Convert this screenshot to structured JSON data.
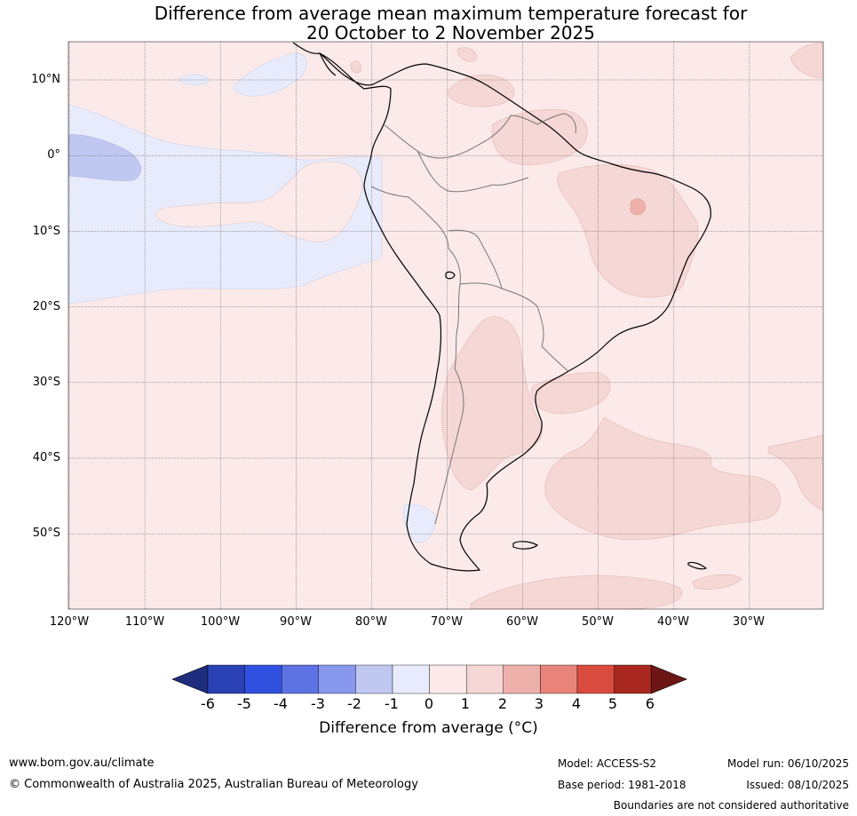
{
  "title": {
    "line1": "Difference from average mean maximum temperature forecast for",
    "line2": "20 October to 2 November 2025"
  },
  "map": {
    "region": "South America",
    "lat_labels": [
      "10°N",
      "0°",
      "10°S",
      "20°S",
      "30°S",
      "40°S",
      "50°S"
    ],
    "lon_labels": [
      "120°W",
      "110°W",
      "100°W",
      "90°W",
      "80°W",
      "70°W",
      "60°W",
      "50°W",
      "40°W",
      "30°W"
    ],
    "colors": {
      "ocean_base": "#fbeae9",
      "warm_1_2": "#f5d7d5",
      "warm_2_3": "#eeb0aa",
      "cool_0_neg1": "#e7ebfb",
      "cool_neg1_neg2": "#c0c8f2"
    }
  },
  "colorbar": {
    "ticks": [
      "-6",
      "-5",
      "-4",
      "-3",
      "-2",
      "-1",
      "0",
      "1",
      "2",
      "3",
      "4",
      "5",
      "6"
    ],
    "colors": [
      "#1f2d7f",
      "#2a40b5",
      "#3050e0",
      "#5d72e3",
      "#8898ed",
      "#c0c8f2",
      "#e7ebfb",
      "#fbeae9",
      "#f5d7d5",
      "#eeb0aa",
      "#e8847a",
      "#d94a3f",
      "#a8281f",
      "#6e1616"
    ],
    "label": "Difference from average (°C)"
  },
  "footer": {
    "website": "www.bom.gov.au/climate",
    "copyright": "© Commonwealth of Australia 2025, Australian Bureau of Meteorology",
    "model": "Model: ACCESS-S2",
    "base_period": "Base period: 1981-2018",
    "model_run": "Model run: 06/10/2025",
    "issued": "Issued: 08/10/2025",
    "disclaimer": "Boundaries are not considered authoritative"
  }
}
